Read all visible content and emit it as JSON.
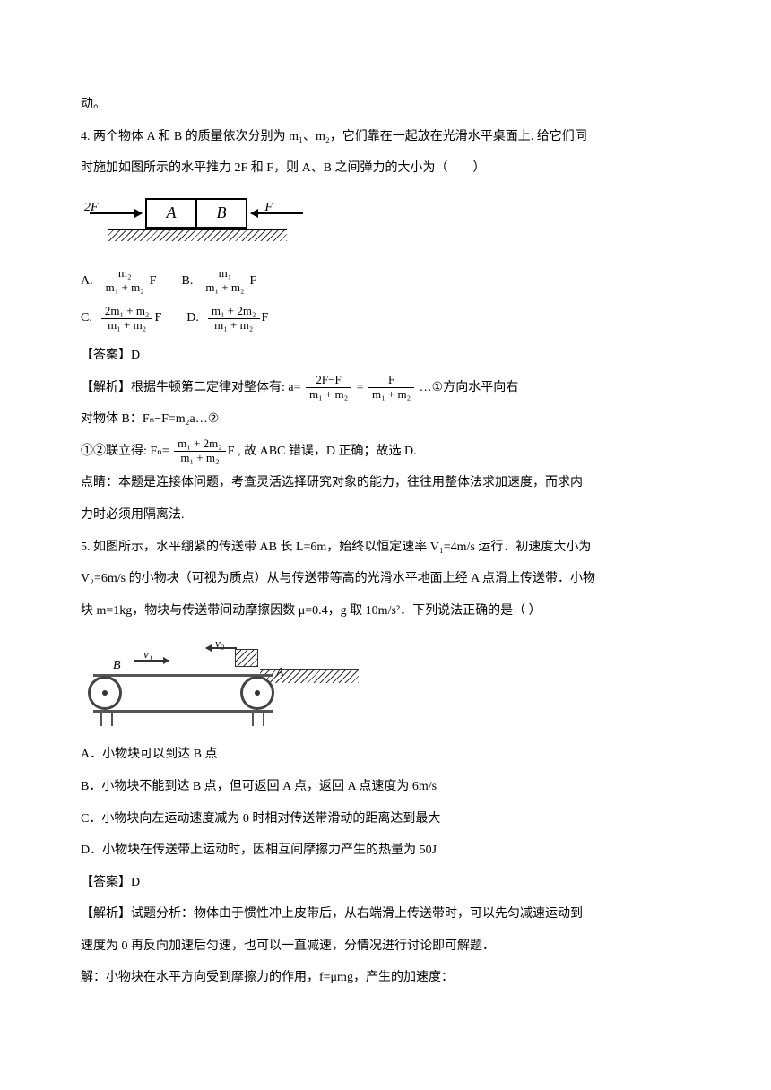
{
  "intro_tail": "动。",
  "q4": {
    "stem1": "4. 两个物体 A 和 B 的质量依次分别为 m₁、m₂，它们靠在一起放在光滑水平桌面上. 给它们同",
    "stem2": "时施加如图所示的水平推力 2F 和 F，则 A、B 之间弹力的大小为（　　）",
    "opts": {
      "A": "A.",
      "B": "B.",
      "C": "C.",
      "D": "D."
    },
    "fracA": {
      "num": "m₂",
      "den": "m₁ + m₂",
      "tail": "F"
    },
    "fracB": {
      "num": "m₁",
      "den": "m₁ + m₂",
      "tail": "F"
    },
    "fracC": {
      "num": "2m₁ + m₂",
      "den": "m₁ + m₂",
      "tail": "F"
    },
    "fracD": {
      "num": "m₁ + 2m₂",
      "den": "m₁ + m₂",
      "tail": "F"
    },
    "ans": "【答案】D",
    "exp1_pre": "【解析】根据牛顿第二定律对整体有: a=",
    "exp1_f1": {
      "num": "2F−F",
      "den": "m₁ + m₂"
    },
    "exp1_eq": "=",
    "exp1_f2": {
      "num": "F",
      "den": "m₁ + m₂"
    },
    "exp1_tail": " …①方向水平向右",
    "exp2": "对物体 B：Fₙ−F=m₂a…②",
    "exp3_pre": "①②联立得: Fₙ=",
    "exp3_f": {
      "num": "m₁ + 2m₂",
      "den": "m₁ + m₂",
      "tail": "F"
    },
    "exp3_tail": " , 故 ABC 错误，D 正确；故选 D.",
    "note1": "点睛：本题是连接体问题，考查灵活选择研究对象的能力，往往用整体法求加速度，而求内",
    "note2": "力时必须用隔离法."
  },
  "q5": {
    "stem1": "5. 如图所示，水平绷紧的传送带 AB 长 L=6m，始终以恒定速率 V₁=4m/s 运行．初速度大小为",
    "stem2": "V₂=6m/s 的小物块（可视为质点）从与传送带等高的光滑水平地面上经 A 点滑上传送带．小物",
    "stem3": "块 m=1kg，物块与传送带间动摩擦因数 μ=0.4，g 取 10m/s²．下列说法正确的是（  ）",
    "optA": "A．小物块可以到达 B 点",
    "optB": "B．小物块不能到达 B 点，但可返回 A 点，返回 A 点速度为 6m/s",
    "optC": "C．小物块向左运动速度减为 0 时相对传送带滑动的距离达到最大",
    "optD": "D．小物块在传送带上运动时，因相互间摩擦力产生的热量为 50J",
    "ans": "【答案】D",
    "exp1": "【解析】试题分析：物体由于惯性冲上皮带后，从右端滑上传送带时，可以先匀减速运动到",
    "exp2": "速度为 0 再反向加速后匀速，也可以一直减速，分情况进行讨论即可解题．",
    "exp3": "解：小物块在水平方向受到摩擦力的作用，f=μmg，产生的加速度："
  },
  "fig1": {
    "labelA": "A",
    "labelB": "B",
    "label2F": "2F",
    "labelF": "F"
  },
  "fig2": {
    "labelA": "A",
    "labelB": "B",
    "v1": "v₁",
    "v2": "v₂"
  }
}
